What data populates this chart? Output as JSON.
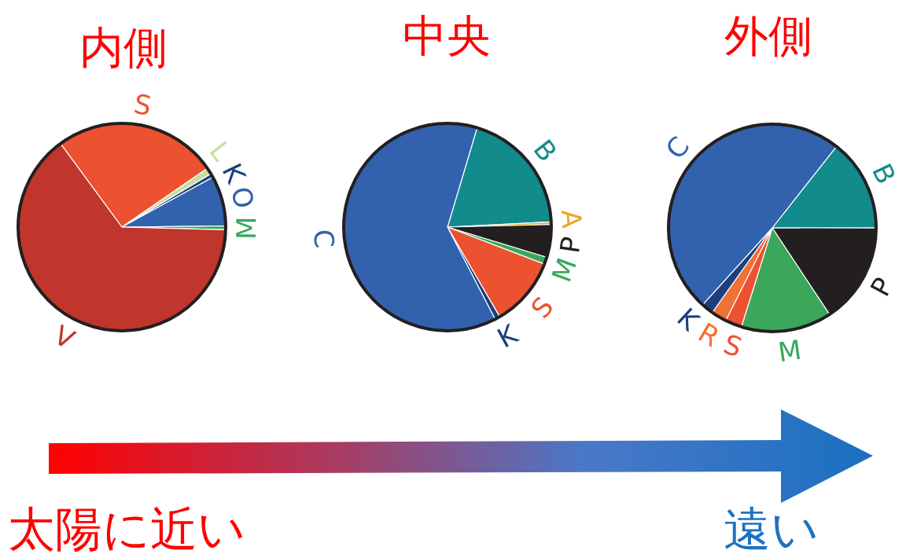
{
  "chart_data": [
    {
      "type": "pie",
      "title": "内側",
      "categories": [
        "S",
        "L",
        "K",
        "O",
        "M",
        "V"
      ],
      "values": [
        25.5,
        1,
        0.6,
        7.8,
        0.6,
        64.5
      ],
      "colors": [
        "#ec5130",
        "#c4df9b",
        "#1d3f7f",
        "#3262ad",
        "#3aa75b",
        "#c0352c"
      ]
    },
    {
      "type": "pie",
      "title": "中央",
      "categories": [
        "B",
        "A",
        "P",
        "M",
        "S",
        "K",
        "C"
      ],
      "values": [
        19.6,
        0.4,
        5.1,
        1.1,
        10.8,
        0.8,
        62.2
      ],
      "colors": [
        "#118b8c",
        "#e8a91f",
        "#231f20",
        "#3aa75b",
        "#ec5130",
        "#1d3f7f",
        "#3262ad"
      ]
    },
    {
      "type": "pie",
      "title": "外側",
      "categories": [
        "B",
        "P",
        "M",
        "S",
        "R",
        "K",
        "C"
      ],
      "values": [
        14.4,
        15.7,
        14.1,
        2.6,
        2.4,
        1.9,
        48.9
      ],
      "colors": [
        "#118b8c",
        "#231f20",
        "#3aa75b",
        "#ec5130",
        "#f07136",
        "#1d3f7f",
        "#3262ad"
      ]
    },
    {
      "type": "other",
      "annotations": [
        "太陽に近い",
        "遠い"
      ]
    }
  ]
}
